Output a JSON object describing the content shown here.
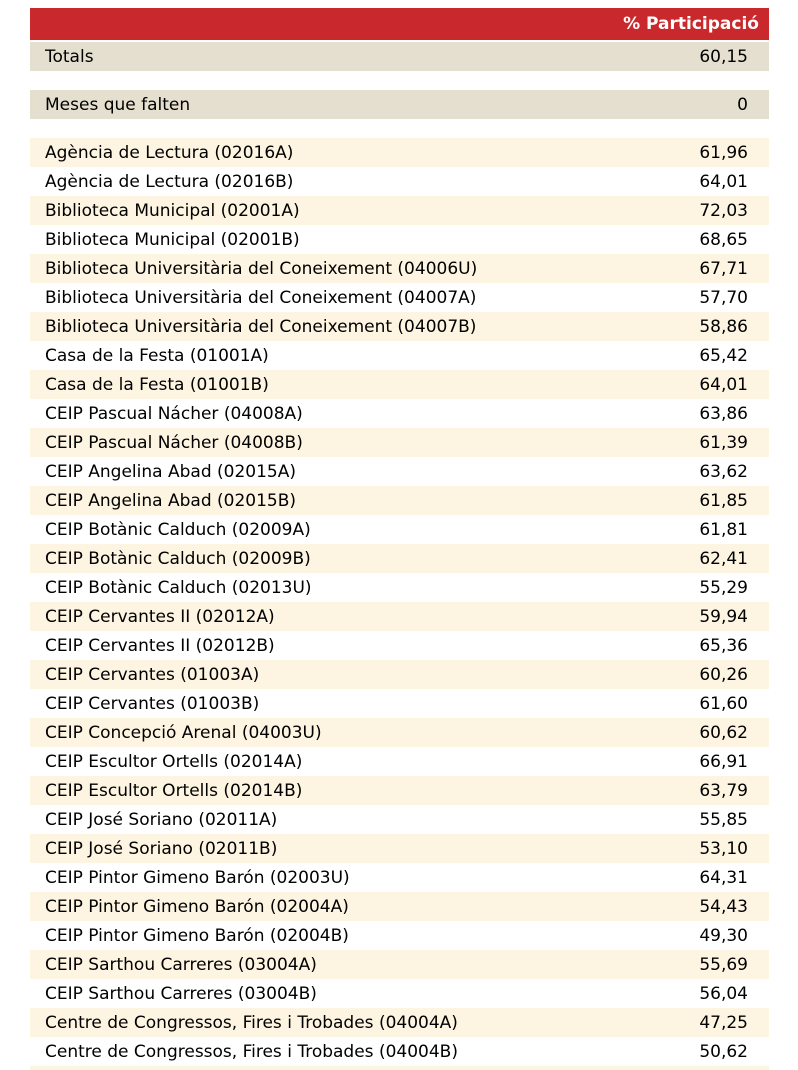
{
  "colors": {
    "header_red": "#C9292C",
    "header_text": "#FFFFFF",
    "summary_row_bg": "#E5DFD0",
    "row_alt_bg": "#FDF4E1",
    "row_bg": "#FFFFFF",
    "text": "#000000"
  },
  "table": {
    "column_header": "% Participació",
    "totals": {
      "label": "Totals",
      "value": "60,15"
    },
    "pending": {
      "label": "Meses que falten",
      "value": "0"
    },
    "rows": [
      {
        "name": "Agència de Lectura (02016A)",
        "value": "61,96"
      },
      {
        "name": "Agència de Lectura (02016B)",
        "value": "64,01"
      },
      {
        "name": "Biblioteca Municipal (02001A)",
        "value": "72,03"
      },
      {
        "name": "Biblioteca Municipal (02001B)",
        "value": "68,65"
      },
      {
        "name": "Biblioteca Universitària del Coneixement (04006U)",
        "value": "67,71"
      },
      {
        "name": "Biblioteca Universitària del Coneixement (04007A)",
        "value": "57,70"
      },
      {
        "name": "Biblioteca Universitària del Coneixement (04007B)",
        "value": "58,86"
      },
      {
        "name": "Casa de la Festa (01001A)",
        "value": "65,42"
      },
      {
        "name": "Casa de la Festa (01001B)",
        "value": "64,01"
      },
      {
        "name": "CEIP Pascual Nácher (04008A)",
        "value": "63,86"
      },
      {
        "name": "CEIP Pascual Nácher (04008B)",
        "value": "61,39"
      },
      {
        "name": "CEIP Angelina Abad (02015A)",
        "value": "63,62"
      },
      {
        "name": "CEIP Angelina Abad (02015B)",
        "value": "61,85"
      },
      {
        "name": "CEIP Botànic Calduch (02009A)",
        "value": "61,81"
      },
      {
        "name": "CEIP Botànic Calduch (02009B)",
        "value": "62,41"
      },
      {
        "name": "CEIP Botànic Calduch (02013U)",
        "value": "55,29"
      },
      {
        "name": "CEIP Cervantes II (02012A)",
        "value": "59,94"
      },
      {
        "name": "CEIP Cervantes II (02012B)",
        "value": "65,36"
      },
      {
        "name": "CEIP Cervantes (01003A)",
        "value": "60,26"
      },
      {
        "name": "CEIP Cervantes (01003B)",
        "value": "61,60"
      },
      {
        "name": "CEIP Concepció Arenal (04003U)",
        "value": "60,62"
      },
      {
        "name": "CEIP Escultor Ortells (02014A)",
        "value": "66,91"
      },
      {
        "name": "CEIP Escultor Ortells (02014B)",
        "value": "63,79"
      },
      {
        "name": "CEIP José Soriano (02011A)",
        "value": "55,85"
      },
      {
        "name": "CEIP José Soriano (02011B)",
        "value": "53,10"
      },
      {
        "name": "CEIP Pintor Gimeno Barón (02003U)",
        "value": "64,31"
      },
      {
        "name": "CEIP Pintor Gimeno Barón (02004A)",
        "value": "54,43"
      },
      {
        "name": "CEIP Pintor Gimeno Barón (02004B)",
        "value": "49,30"
      },
      {
        "name": "CEIP Sarthou Carreres (03004A)",
        "value": "55,69"
      },
      {
        "name": "CEIP Sarthou Carreres (03004B)",
        "value": "56,04"
      },
      {
        "name": "Centre de Congressos, Fires i Trobades (04004A)",
        "value": "47,25"
      },
      {
        "name": "Centre de Congressos, Fires i Trobades (04004B)",
        "value": "50,62"
      }
    ]
  }
}
